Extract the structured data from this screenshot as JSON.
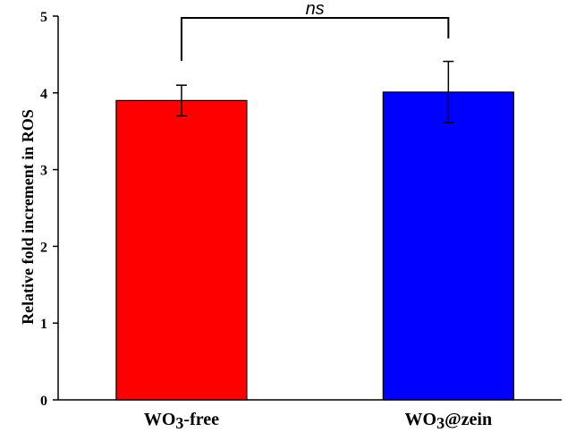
{
  "chart_data": {
    "type": "bar",
    "categories": [
      "WO3-free",
      "WO3@zein"
    ],
    "category_labels": [
      {
        "main": "WO",
        "sub": "3",
        "rest": "-free"
      },
      {
        "main": "WO",
        "sub": "3",
        "rest": "@zein"
      }
    ],
    "values": [
      3.9,
      4.01
    ],
    "errors": [
      0.2,
      0.4
    ],
    "colors": [
      "#ff0000",
      "#0000ff"
    ],
    "ylabel": "Relative fold increment in ROS",
    "xlabel": "",
    "ylim": [
      0,
      5
    ],
    "yticks": [
      0,
      1,
      2,
      3,
      4,
      5
    ],
    "significance": {
      "label": "ns",
      "between": [
        0,
        1
      ]
    },
    "grid": false
  }
}
